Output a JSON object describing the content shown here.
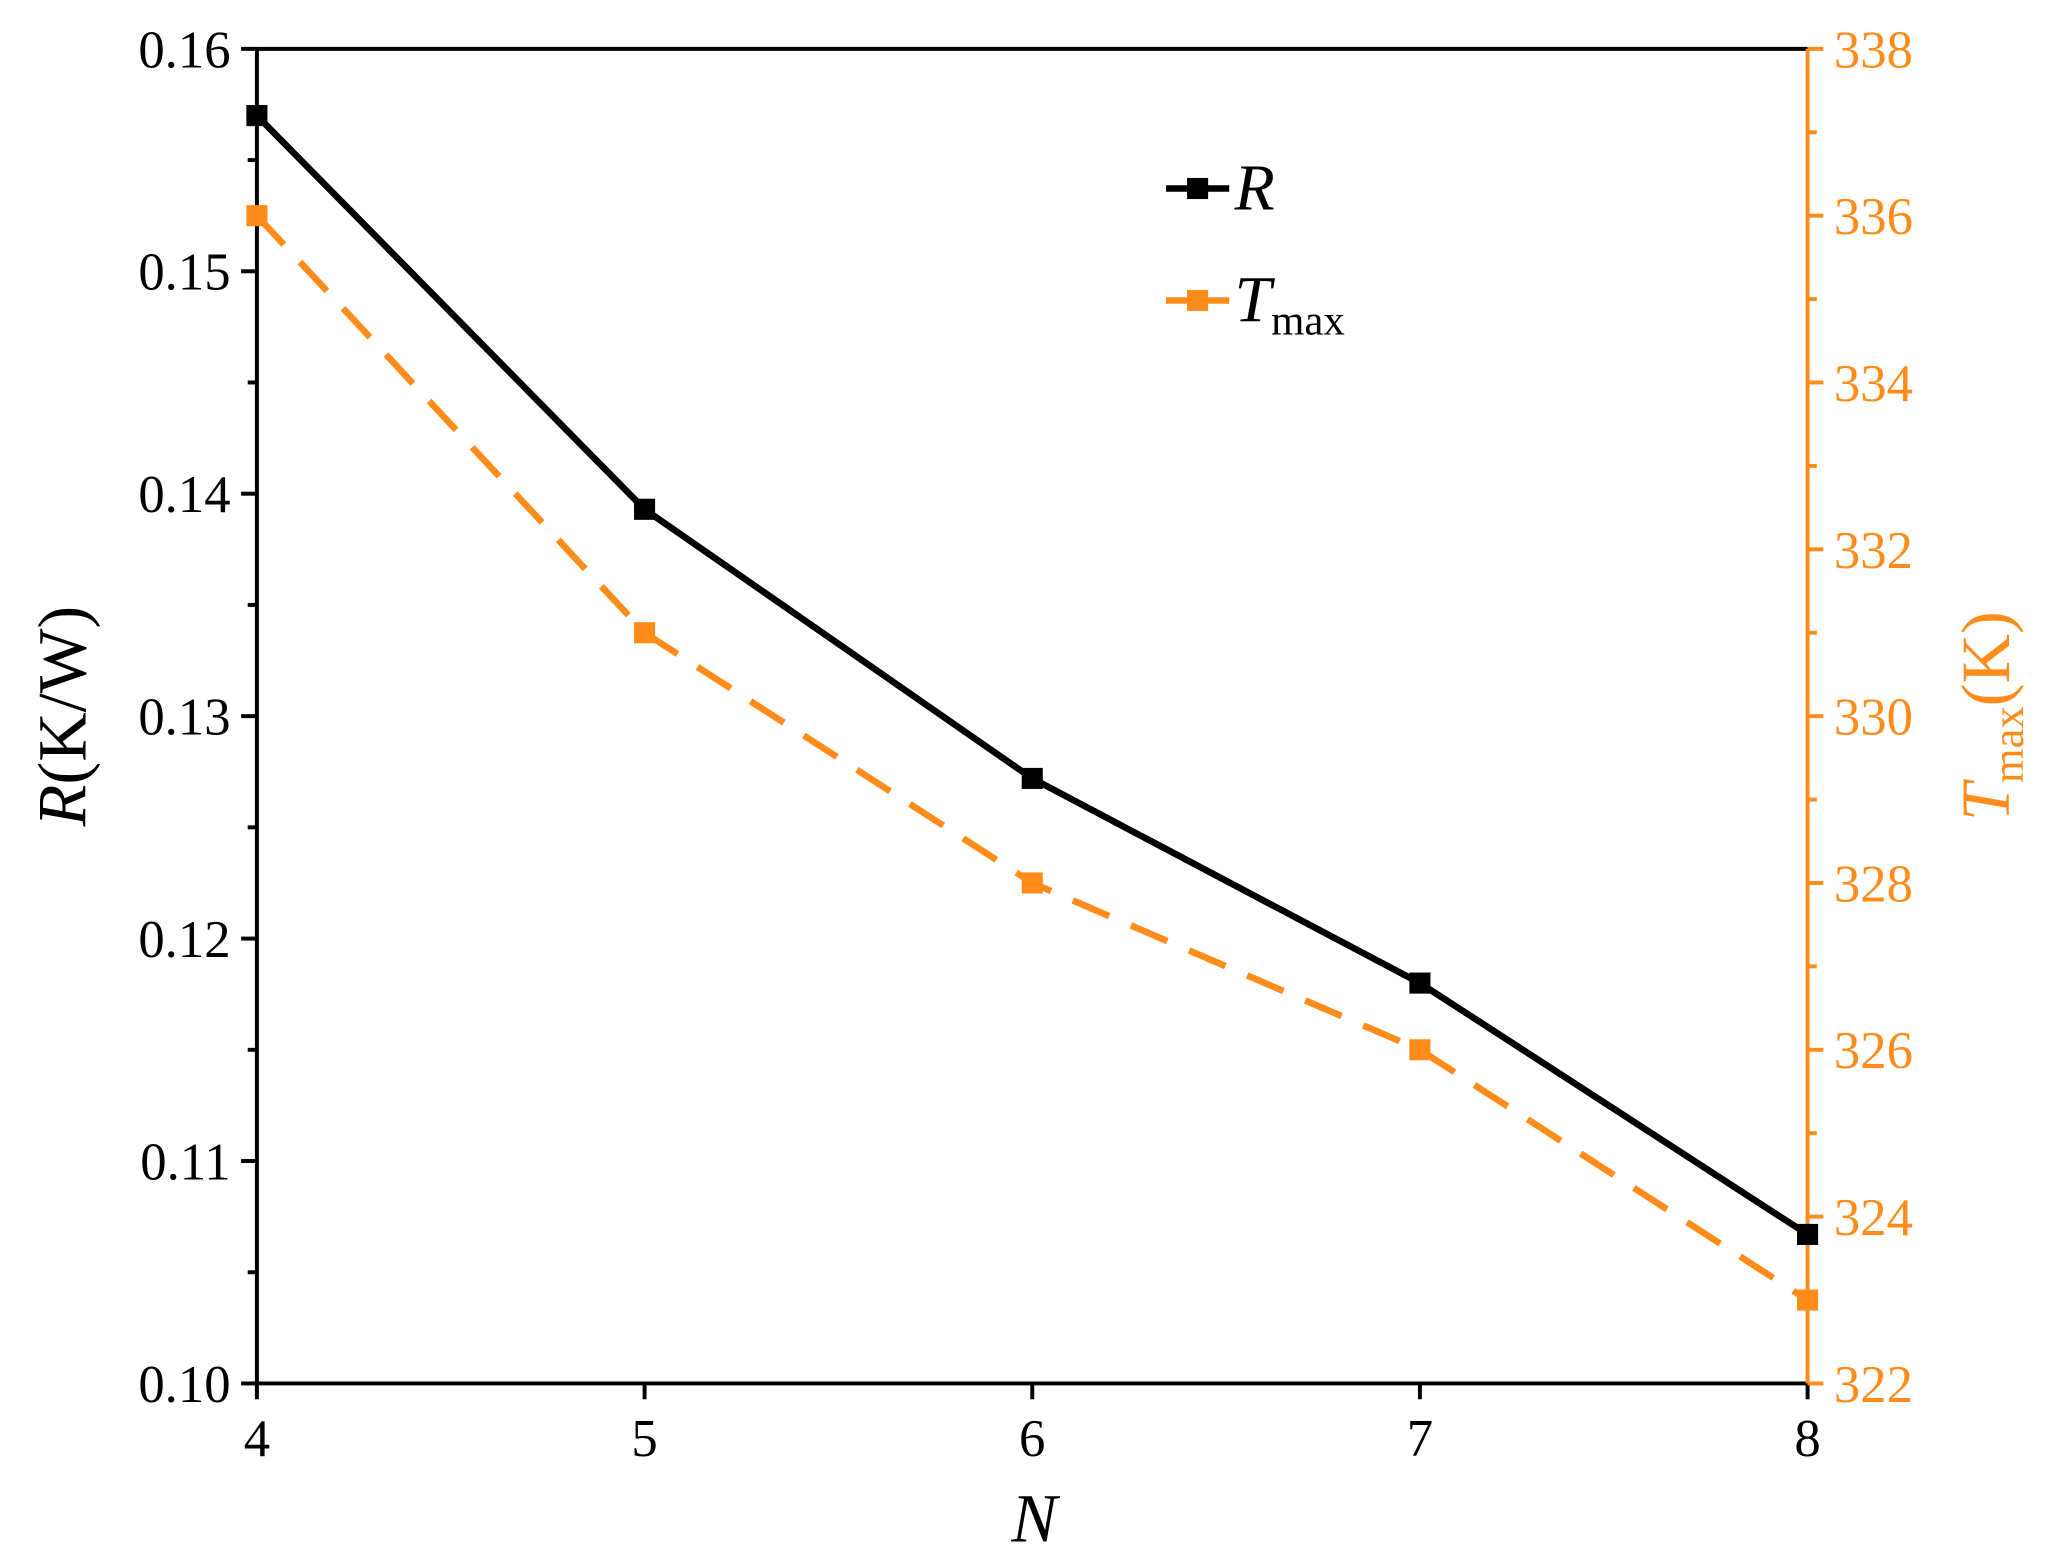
{
  "chart_data": {
    "type": "line",
    "x_label": "N",
    "y_label": "R(K/W)",
    "y2_label": "Tmax(K)",
    "x": [
      4,
      5,
      6,
      7,
      8
    ],
    "xlim": [
      4,
      8
    ],
    "xticks": [
      4,
      5,
      6,
      7,
      8
    ],
    "ylim": [
      0.1,
      0.16
    ],
    "yticks": [
      {
        "value": 0.1,
        "label": "0.10"
      },
      0.11,
      0.12,
      0.13,
      0.14,
      0.15,
      0.16
    ],
    "y2lim": [
      322,
      338
    ],
    "y2ticks": [
      322,
      324,
      326,
      328,
      330,
      332,
      334,
      336,
      338
    ],
    "y2_color": "#ff8c1a",
    "legend_position": "upper center",
    "series": [
      {
        "name": "R",
        "color": "#000000",
        "dash": "solid",
        "values": [
          0.157,
          0.1393,
          0.1272,
          0.118,
          0.1067
        ]
      },
      {
        "name": "Tmax",
        "color": "#ff8c1a",
        "dash": "dashed",
        "axis": "y2",
        "values": [
          336,
          331,
          328,
          326,
          323
        ]
      }
    ]
  }
}
